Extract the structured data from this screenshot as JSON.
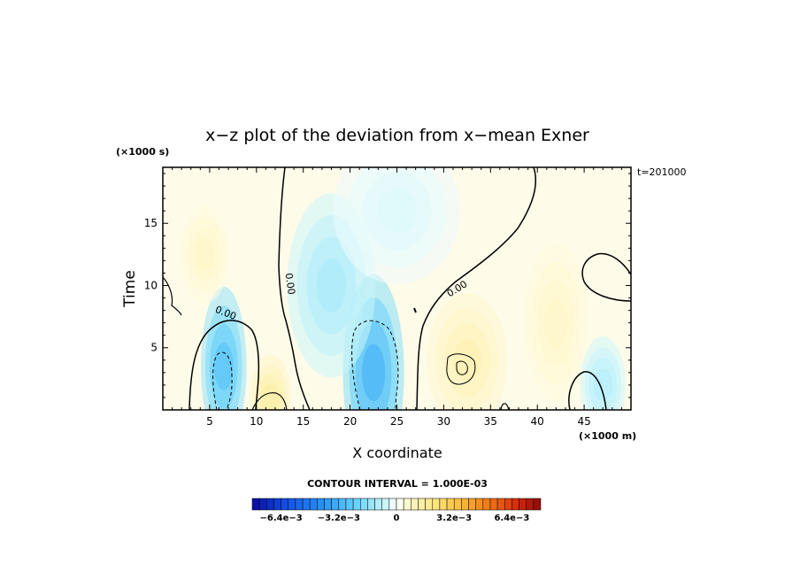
{
  "chart_data": {
    "type": "heatmap",
    "title": "x−z plot of the deviation from x−mean Exner",
    "xlabel": "X coordinate",
    "ylabel": "Time",
    "x_unit": "(×1000 m)",
    "y_unit": "(×1000 s)",
    "time_stamp": "t=201000",
    "xlim": [
      0,
      50
    ],
    "ylim": [
      0,
      19.5
    ],
    "x_ticks": [
      5,
      10,
      15,
      20,
      25,
      30,
      35,
      40,
      45
    ],
    "y_ticks": [
      5,
      10,
      15
    ],
    "contour_interval_text": "CONTOUR INTERVAL = 1.000E-03",
    "contour_labels": [
      "0.00",
      "0.00",
      "0.00"
    ],
    "colorbar": {
      "range": [
        -0.008,
        0.008
      ],
      "tick_labels": [
        "−6.4e−3",
        "−3.2e−3",
        "0",
        "3.2e−3",
        "6.4e−3"
      ],
      "tick_values": [
        -0.0064,
        -0.0032,
        0,
        0.0032,
        0.0064
      ],
      "n_bins": 40
    },
    "anomalies": [
      {
        "x": 6.5,
        "t": 3.5,
        "value": -0.0028
      },
      {
        "x": 22.5,
        "t": 3.0,
        "value": -0.0033
      },
      {
        "x": 18.0,
        "t": 10.0,
        "value": -0.0012
      },
      {
        "x": 32.5,
        "t": 4.0,
        "value": 0.0012
      },
      {
        "x": 42.0,
        "t": 7.0,
        "value": 0.0008
      },
      {
        "x": 4.5,
        "t": 12.5,
        "value": 0.0008
      },
      {
        "x": 11.5,
        "t": 1.0,
        "value": 0.0015
      },
      {
        "x": 47.0,
        "t": 2.0,
        "value": -0.001
      },
      {
        "x": 25.0,
        "t": 16.0,
        "value": -0.0004
      }
    ]
  }
}
